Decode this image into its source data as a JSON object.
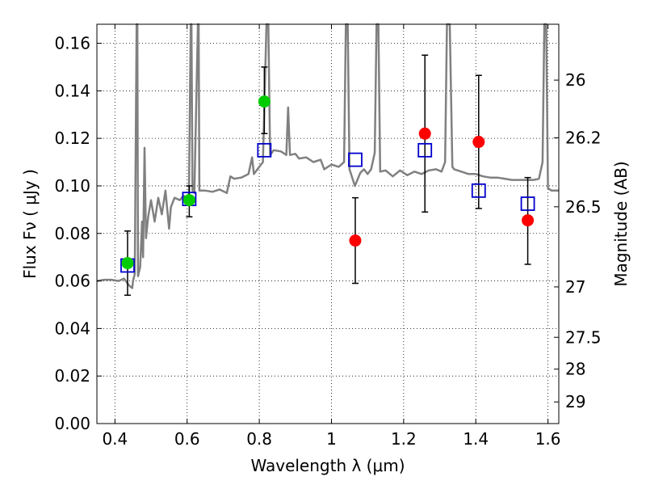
{
  "chart_data": {
    "type": "scatter",
    "xlabel": "Wavelength  λ (μm)",
    "ylabel": "Flux  Fν  ( μJy )",
    "y2label": "Magnitude (AB)",
    "xlim": [
      0.35,
      1.63
    ],
    "ylim": [
      0.0,
      0.168
    ],
    "grid": true,
    "x_ticks": [
      {
        "value": 0.4,
        "label": "0.4"
      },
      {
        "value": 0.6,
        "label": "0.6"
      },
      {
        "value": 0.8,
        "label": "0.8"
      },
      {
        "value": 1.0,
        "label": "1"
      },
      {
        "value": 1.2,
        "label": "1.2"
      },
      {
        "value": 1.4,
        "label": "1.4"
      },
      {
        "value": 1.6,
        "label": "1.6"
      }
    ],
    "y_ticks": [
      {
        "value": 0.0,
        "label": "0.00"
      },
      {
        "value": 0.02,
        "label": "0.02"
      },
      {
        "value": 0.04,
        "label": "0.04"
      },
      {
        "value": 0.06,
        "label": "0.06"
      },
      {
        "value": 0.08,
        "label": "0.08"
      },
      {
        "value": 0.1,
        "label": "0.10"
      },
      {
        "value": 0.12,
        "label": "0.12"
      },
      {
        "value": 0.14,
        "label": "0.14"
      },
      {
        "value": 0.16,
        "label": "0.16"
      }
    ],
    "y2_ticks": [
      {
        "flux": 0.1445,
        "label": "26"
      },
      {
        "flux": 0.1202,
        "label": "26.2"
      },
      {
        "flux": 0.0912,
        "label": "26.5"
      },
      {
        "flux": 0.0575,
        "label": "27"
      },
      {
        "flux": 0.0363,
        "label": "27.5"
      },
      {
        "flux": 0.0229,
        "label": "28"
      },
      {
        "flux": 0.0091,
        "label": "29"
      }
    ],
    "series": [
      {
        "marker": "circle",
        "color": "#00cc00",
        "points": [
          {
            "x": 0.435,
            "y": 0.0675,
            "yerr": [
              0.054,
              0.081
            ]
          },
          {
            "x": 0.606,
            "y": 0.094,
            "yerr": [
              0.087,
              0.1
            ]
          },
          {
            "x": 0.814,
            "y": 0.1355,
            "yerr": [
              0.122,
              0.15
            ]
          }
        ]
      },
      {
        "marker": "circle",
        "color": "#ff0000",
        "points": [
          {
            "x": 1.066,
            "y": 0.077,
            "yerr": [
              0.059,
              0.095
            ]
          },
          {
            "x": 1.259,
            "y": 0.122,
            "yerr": [
              0.089,
              0.155
            ]
          },
          {
            "x": 1.408,
            "y": 0.1185,
            "yerr": [
              0.0905,
              0.1465
            ]
          },
          {
            "x": 1.544,
            "y": 0.0855,
            "yerr": [
              0.067,
              0.1035
            ]
          }
        ]
      },
      {
        "marker": "square-open",
        "color": "#0000cc",
        "points": [
          {
            "x": 0.435,
            "y": 0.0665
          },
          {
            "x": 0.606,
            "y": 0.0945
          },
          {
            "x": 0.814,
            "y": 0.115
          },
          {
            "x": 1.066,
            "y": 0.111
          },
          {
            "x": 1.259,
            "y": 0.115
          },
          {
            "x": 1.408,
            "y": 0.098
          },
          {
            "x": 1.544,
            "y": 0.0925
          }
        ]
      }
    ],
    "model_spectrum": {
      "color": "#808080",
      "points": [
        [
          0.35,
          0.06
        ],
        [
          0.37,
          0.0605
        ],
        [
          0.39,
          0.0605
        ],
        [
          0.41,
          0.06
        ],
        [
          0.425,
          0.061
        ],
        [
          0.44,
          0.058
        ],
        [
          0.448,
          0.057
        ],
        [
          0.45,
          0.06
        ],
        [
          0.455,
          0.063
        ],
        [
          0.46,
          0.168
        ],
        [
          0.462,
          0.168
        ],
        [
          0.464,
          0.062
        ],
        [
          0.47,
          0.066
        ],
        [
          0.475,
          0.085
        ],
        [
          0.478,
          0.07
        ],
        [
          0.482,
          0.116
        ],
        [
          0.486,
          0.078
        ],
        [
          0.492,
          0.087
        ],
        [
          0.5,
          0.094
        ],
        [
          0.51,
          0.085
        ],
        [
          0.52,
          0.095
        ],
        [
          0.53,
          0.088
        ],
        [
          0.54,
          0.098
        ],
        [
          0.55,
          0.082
        ],
        [
          0.555,
          0.091
        ],
        [
          0.565,
          0.095
        ],
        [
          0.58,
          0.094
        ],
        [
          0.59,
          0.096
        ],
        [
          0.6,
          0.094
        ],
        [
          0.605,
          0.097
        ],
        [
          0.61,
          0.168
        ],
        [
          0.612,
          0.168
        ],
        [
          0.615,
          0.098
        ],
        [
          0.62,
          0.097
        ],
        [
          0.63,
          0.168
        ],
        [
          0.632,
          0.168
        ],
        [
          0.634,
          0.098
        ],
        [
          0.65,
          0.098
        ],
        [
          0.67,
          0.0975
        ],
        [
          0.69,
          0.0985
        ],
        [
          0.71,
          0.097
        ],
        [
          0.72,
          0.104
        ],
        [
          0.73,
          0.103
        ],
        [
          0.75,
          0.1035
        ],
        [
          0.77,
          0.105
        ],
        [
          0.78,
          0.112
        ],
        [
          0.785,
          0.105
        ],
        [
          0.8,
          0.108
        ],
        [
          0.81,
          0.11
        ],
        [
          0.82,
          0.168
        ],
        [
          0.825,
          0.168
        ],
        [
          0.83,
          0.113
        ],
        [
          0.84,
          0.115
        ],
        [
          0.86,
          0.1145
        ],
        [
          0.875,
          0.113
        ],
        [
          0.88,
          0.133
        ],
        [
          0.885,
          0.113
        ],
        [
          0.9,
          0.1135
        ],
        [
          0.91,
          0.1115
        ],
        [
          0.93,
          0.112
        ],
        [
          0.95,
          0.11
        ],
        [
          0.97,
          0.111
        ],
        [
          0.98,
          0.107
        ],
        [
          1.0,
          0.109
        ],
        [
          1.02,
          0.108
        ],
        [
          1.035,
          0.11
        ],
        [
          1.04,
          0.168
        ],
        [
          1.045,
          0.168
        ],
        [
          1.05,
          0.107
        ],
        [
          1.065,
          0.1
        ],
        [
          1.08,
          0.1055
        ],
        [
          1.09,
          0.107
        ],
        [
          1.1,
          0.105
        ],
        [
          1.11,
          0.107
        ],
        [
          1.12,
          0.114
        ],
        [
          1.125,
          0.168
        ],
        [
          1.13,
          0.168
        ],
        [
          1.135,
          0.106
        ],
        [
          1.15,
          0.1065
        ],
        [
          1.17,
          0.104
        ],
        [
          1.19,
          0.1065
        ],
        [
          1.21,
          0.1045
        ],
        [
          1.23,
          0.106
        ],
        [
          1.25,
          0.105
        ],
        [
          1.27,
          0.1065
        ],
        [
          1.29,
          0.107
        ],
        [
          1.305,
          0.106
        ],
        [
          1.315,
          0.11
        ],
        [
          1.32,
          0.168
        ],
        [
          1.328,
          0.168
        ],
        [
          1.335,
          0.108
        ],
        [
          1.34,
          0.107
        ],
        [
          1.36,
          0.106
        ],
        [
          1.38,
          0.105
        ],
        [
          1.4,
          0.105
        ],
        [
          1.42,
          0.104
        ],
        [
          1.44,
          0.1035
        ],
        [
          1.46,
          0.1035
        ],
        [
          1.48,
          0.103
        ],
        [
          1.5,
          0.1025
        ],
        [
          1.52,
          0.1025
        ],
        [
          1.54,
          0.1025
        ],
        [
          1.56,
          0.1025
        ],
        [
          1.575,
          0.103
        ],
        [
          1.585,
          0.11
        ],
        [
          1.59,
          0.168
        ],
        [
          1.595,
          0.168
        ],
        [
          1.6,
          0.099
        ],
        [
          1.61,
          0.098
        ],
        [
          1.63,
          0.098
        ]
      ]
    }
  }
}
